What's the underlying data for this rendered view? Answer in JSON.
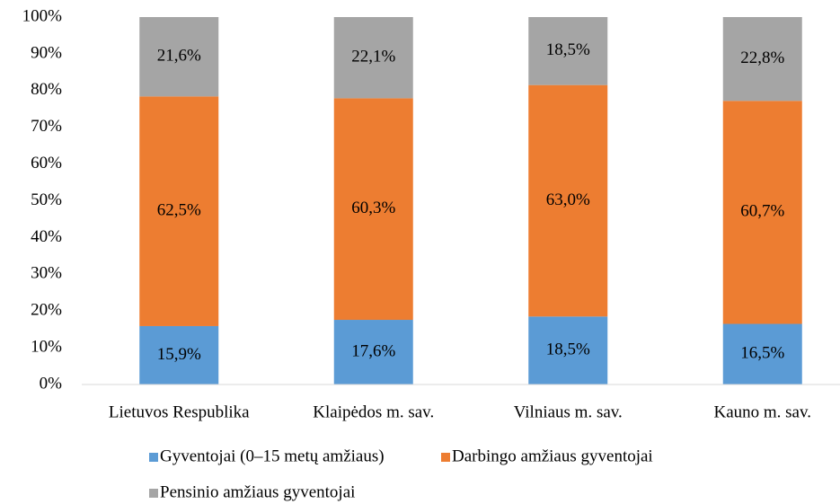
{
  "chart_data": {
    "type": "stacked_bar",
    "categories": [
      "Lietuvos Respublika",
      "Klaipėdos m. sav.",
      "Vilniaus m. sav.",
      "Kauno m. sav."
    ],
    "series": [
      {
        "name": "Gyventojai (0–15 metų amžiaus)",
        "color": "#5b9bd5",
        "values": [
          15.9,
          17.6,
          18.5,
          16.5
        ],
        "value_labels": [
          "15,9%",
          "17,6%",
          "18,5%",
          "16,5%"
        ]
      },
      {
        "name": "Darbingo amžiaus gyventojai",
        "color": "#ed7d31",
        "values": [
          62.5,
          60.3,
          63.0,
          60.7
        ],
        "value_labels": [
          "62,5%",
          "60,3%",
          "63,0%",
          "60,7%"
        ]
      },
      {
        "name": "Pensinio amžiaus gyventojai",
        "color": "#a5a5a5",
        "values": [
          21.6,
          22.1,
          18.5,
          22.8
        ],
        "value_labels": [
          "21,6%",
          "22,1%",
          "18,5%",
          "22,8%"
        ]
      }
    ],
    "ylim": [
      0,
      100
    ],
    "yticks": [
      {
        "value": 0,
        "label": "0%"
      },
      {
        "value": 10,
        "label": "10%"
      },
      {
        "value": 20,
        "label": "20%"
      },
      {
        "value": 30,
        "label": "30%"
      },
      {
        "value": 40,
        "label": "40%"
      },
      {
        "value": 50,
        "label": "50%"
      },
      {
        "value": 60,
        "label": "60%"
      },
      {
        "value": 70,
        "label": "70%"
      },
      {
        "value": 80,
        "label": "80%"
      },
      {
        "value": 90,
        "label": "90%"
      },
      {
        "value": 100,
        "label": "100%"
      }
    ],
    "grid": false,
    "legend": "bottom"
  }
}
